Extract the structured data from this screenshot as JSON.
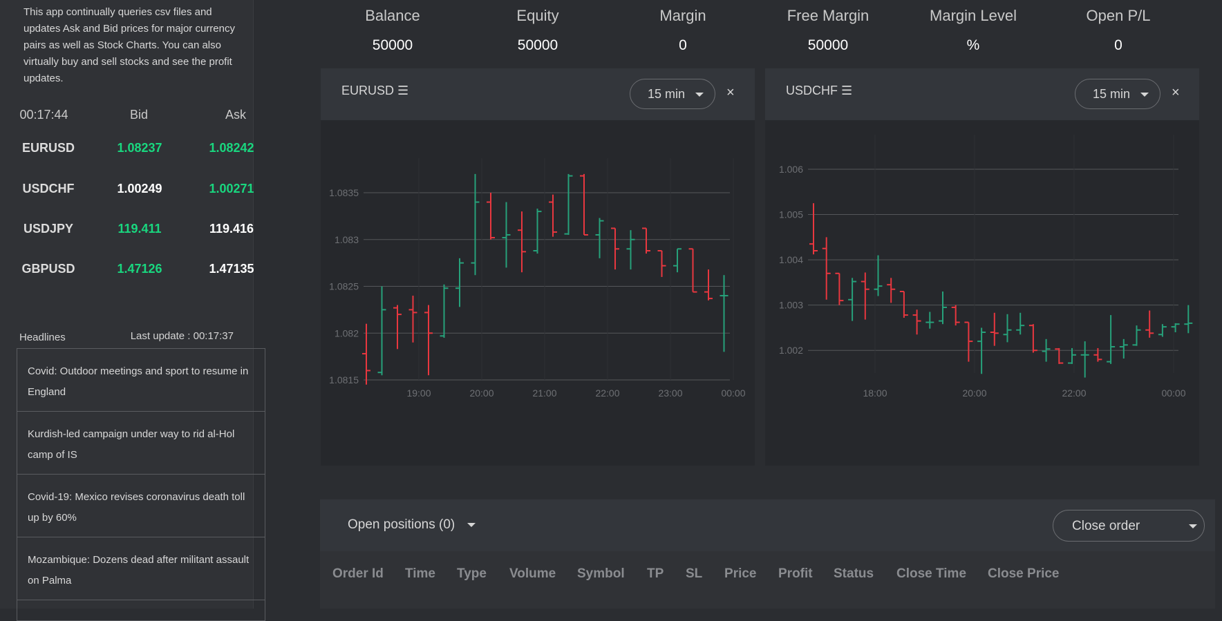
{
  "intro_text": "This app continually queries csv files and updates Ask and Bid prices for major currency pairs as well as Stock Charts. You can also virtually buy and sell stocks and see the profit updates.",
  "quotes": {
    "time": "00:17:44",
    "bid_label": "Bid",
    "ask_label": "Ask",
    "rows": [
      {
        "symbol": "EURUSD",
        "bid": "1.08237",
        "ask": "1.08242",
        "bid_color": "#19d77f",
        "ask_color": "#19d77f"
      },
      {
        "symbol": "USDCHF",
        "bid": "1.00249",
        "ask": "1.00271",
        "bid_color": "#ffffff",
        "ask_color": "#19d77f"
      },
      {
        "symbol": "USDJPY",
        "bid": "119.411",
        "ask": "119.416",
        "bid_color": "#19d77f",
        "ask_color": "#ffffff"
      },
      {
        "symbol": "GBPUSD",
        "bid": "1.47126",
        "ask": "1.47135",
        "bid_color": "#19d77f",
        "ask_color": "#ffffff"
      }
    ]
  },
  "headlines": {
    "title": "Headlines",
    "last_update": "Last update : 00:17:37",
    "items": [
      "Covid: Outdoor meetings and sport to resume in England",
      "Kurdish-led campaign under way to rid al-Hol camp of IS",
      "Covid-19: Mexico revises coronavirus death toll up by 60%",
      "Mozambique: Dozens dead after militant assault on Palma",
      ""
    ]
  },
  "stats": [
    {
      "label": "Balance",
      "value": "50000"
    },
    {
      "label": "Equity",
      "value": "50000"
    },
    {
      "label": "Margin",
      "value": "0"
    },
    {
      "label": "Free Margin",
      "value": "50000"
    },
    {
      "label": "Margin Level",
      "value": "%"
    },
    {
      "label": "Open P/L",
      "value": "0"
    }
  ],
  "charts": [
    {
      "title": "EURUSD ☰",
      "timeframe": "15 min",
      "close": "×"
    },
    {
      "title": "USDCHF ☰",
      "timeframe": "15 min",
      "close": "×"
    }
  ],
  "colors": {
    "up": "#26a17a",
    "down": "#e8373f",
    "grid": "#55575a",
    "axis_text": "#6e7074"
  },
  "chart_data": [
    {
      "type": "ohlc",
      "title": "EURUSD",
      "x_ticks": [
        "19:00",
        "20:00",
        "21:00",
        "22:00",
        "23:00",
        "00:00"
      ],
      "y_ticks": [
        "1.0815",
        "1.082",
        "1.0825",
        "1.083",
        "1.0835"
      ],
      "ylim": [
        1.0815,
        1.0835
      ],
      "bars": [
        {
          "o": 1.08178,
          "h": 1.0821,
          "l": 1.08145,
          "c": 1.0816
        },
        {
          "o": 1.08158,
          "h": 1.0825,
          "l": 1.08155,
          "c": 1.08225
        },
        {
          "o": 1.08227,
          "h": 1.0823,
          "l": 1.08183,
          "c": 1.0822
        },
        {
          "o": 1.08225,
          "h": 1.0824,
          "l": 1.0819,
          "c": 1.08222
        },
        {
          "o": 1.08222,
          "h": 1.0823,
          "l": 1.08155,
          "c": 1.082
        },
        {
          "o": 1.08197,
          "h": 1.08252,
          "l": 1.08195,
          "c": 1.08248
        },
        {
          "o": 1.08248,
          "h": 1.0828,
          "l": 1.08228,
          "c": 1.08275
        },
        {
          "o": 1.08275,
          "h": 1.0837,
          "l": 1.08262,
          "c": 1.0834
        },
        {
          "o": 1.0834,
          "h": 1.0835,
          "l": 1.083,
          "c": 1.08302
        },
        {
          "o": 1.08302,
          "h": 1.0834,
          "l": 1.0827,
          "c": 1.08305
        },
        {
          "o": 1.0831,
          "h": 1.0833,
          "l": 1.08265,
          "c": 1.08287
        },
        {
          "o": 1.08288,
          "h": 1.08333,
          "l": 1.08285,
          "c": 1.0833
        },
        {
          "o": 1.0834,
          "h": 1.08348,
          "l": 1.08303,
          "c": 1.08308
        },
        {
          "o": 1.08306,
          "h": 1.0837,
          "l": 1.08305,
          "c": 1.08368
        },
        {
          "o": 1.08368,
          "h": 1.0837,
          "l": 1.08305,
          "c": 1.08305
        },
        {
          "o": 1.08305,
          "h": 1.08323,
          "l": 1.0828,
          "c": 1.0832
        },
        {
          "o": 1.08312,
          "h": 1.08312,
          "l": 1.08268,
          "c": 1.0829
        },
        {
          "o": 1.0829,
          "h": 1.0831,
          "l": 1.08268,
          "c": 1.083
        },
        {
          "o": 1.08312,
          "h": 1.08312,
          "l": 1.08285,
          "c": 1.08288
        },
        {
          "o": 1.08288,
          "h": 1.08288,
          "l": 1.0826,
          "c": 1.08272
        },
        {
          "o": 1.08272,
          "h": 1.0829,
          "l": 1.08265,
          "c": 1.0829
        },
        {
          "o": 1.0829,
          "h": 1.0829,
          "l": 1.08244,
          "c": 1.08244
        },
        {
          "o": 1.08244,
          "h": 1.08268,
          "l": 1.08235,
          "c": 1.08237
        },
        {
          "o": 1.0824,
          "h": 1.08262,
          "l": 1.0818,
          "c": 1.0824
        }
      ]
    },
    {
      "type": "ohlc",
      "title": "USDCHF",
      "x_ticks": [
        "18:00",
        "20:00",
        "22:00",
        "00:00"
      ],
      "y_ticks": [
        "1.002",
        "1.003",
        "1.004",
        "1.005",
        "1.006"
      ],
      "ylim": [
        1.0015,
        1.006
      ],
      "bars": [
        {
          "o": 1.00435,
          "h": 1.00525,
          "l": 1.00412,
          "c": 1.0042
        },
        {
          "o": 1.00425,
          "h": 1.0045,
          "l": 1.00312,
          "c": 1.0037
        },
        {
          "o": 1.0037,
          "h": 1.0037,
          "l": 1.003,
          "c": 1.0031
        },
        {
          "o": 1.00312,
          "h": 1.0036,
          "l": 1.00265,
          "c": 1.00352
        },
        {
          "o": 1.00352,
          "h": 1.00372,
          "l": 1.00268,
          "c": 1.00335
        },
        {
          "o": 1.00335,
          "h": 1.0041,
          "l": 1.0032,
          "c": 1.00342
        },
        {
          "o": 1.00345,
          "h": 1.0036,
          "l": 1.00305,
          "c": 1.00335
        },
        {
          "o": 1.0033,
          "h": 1.0033,
          "l": 1.00272,
          "c": 1.00278
        },
        {
          "o": 1.00278,
          "h": 1.0029,
          "l": 1.00235,
          "c": 1.00265
        },
        {
          "o": 1.00262,
          "h": 1.00285,
          "l": 1.00248,
          "c": 1.00262
        },
        {
          "o": 1.00265,
          "h": 1.0033,
          "l": 1.00258,
          "c": 1.00295
        },
        {
          "o": 1.00295,
          "h": 1.003,
          "l": 1.00255,
          "c": 1.00262
        },
        {
          "o": 1.00262,
          "h": 1.00262,
          "l": 1.00175,
          "c": 1.0022
        },
        {
          "o": 1.0022,
          "h": 1.0025,
          "l": 1.00148,
          "c": 1.0024
        },
        {
          "o": 1.0024,
          "h": 1.00283,
          "l": 1.0021,
          "c": 1.00238
        },
        {
          "o": 1.00235,
          "h": 1.0028,
          "l": 1.00218,
          "c": 1.00245
        },
        {
          "o": 1.00245,
          "h": 1.00283,
          "l": 1.00235,
          "c": 1.00255
        },
        {
          "o": 1.00255,
          "h": 1.00258,
          "l": 1.00195,
          "c": 1.002
        },
        {
          "o": 1.00198,
          "h": 1.00225,
          "l": 1.00175,
          "c": 1.00203
        },
        {
          "o": 1.00203,
          "h": 1.00205,
          "l": 1.0017,
          "c": 1.00172
        },
        {
          "o": 1.00172,
          "h": 1.00205,
          "l": 1.0017,
          "c": 1.0019
        },
        {
          "o": 1.0019,
          "h": 1.0022,
          "l": 1.0014,
          "c": 1.0019
        },
        {
          "o": 1.0019,
          "h": 1.00205,
          "l": 1.00175,
          "c": 1.0018
        },
        {
          "o": 1.00175,
          "h": 1.00278,
          "l": 1.0017,
          "c": 1.00208
        },
        {
          "o": 1.00208,
          "h": 1.00225,
          "l": 1.00182,
          "c": 1.00212
        },
        {
          "o": 1.00212,
          "h": 1.00255,
          "l": 1.0021,
          "c": 1.00245
        },
        {
          "o": 1.00245,
          "h": 1.00288,
          "l": 1.00228,
          "c": 1.00238
        },
        {
          "o": 1.00235,
          "h": 1.00258,
          "l": 1.0023,
          "c": 1.00252
        },
        {
          "o": 1.00252,
          "h": 1.0026,
          "l": 1.0024,
          "c": 1.00258
        },
        {
          "o": 1.00258,
          "h": 1.003,
          "l": 1.00238,
          "c": 1.0026
        }
      ]
    }
  ],
  "orders": {
    "open_positions": "Open positions (0)",
    "close_order": "Close order",
    "columns": [
      "Order Id",
      "Time",
      "Type",
      "Volume",
      "Symbol",
      "TP",
      "SL",
      "Price",
      "Profit",
      "Status",
      "Close Time",
      "Close Price"
    ]
  }
}
